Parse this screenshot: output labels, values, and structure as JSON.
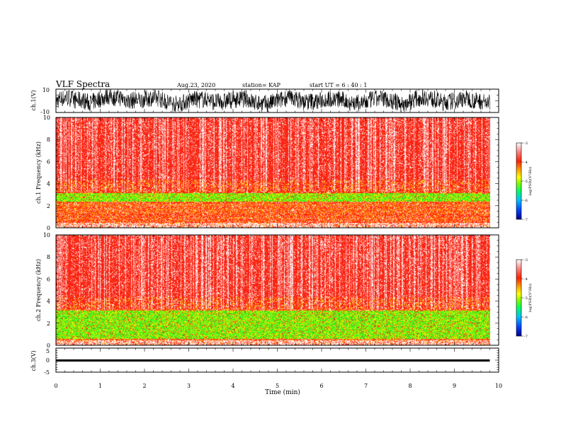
{
  "header": {
    "title": "VLF Spectra",
    "date": "Aug.23, 2020",
    "station": "station= KAP",
    "start_ut": "start  UT =   6  : 40 : 1"
  },
  "colorbar": {
    "label": "log(PSD)(V²/Hz)",
    "ticks": [
      "-3",
      "-4",
      "-5",
      "-6",
      "-7"
    ],
    "colors": [
      "#000090",
      "#0040ff",
      "#00c0ff",
      "#00ff60",
      "#80ff00",
      "#ffff00",
      "#ffa000",
      "#ff2000",
      "#ff8080",
      "#ffffff"
    ]
  },
  "chart_data": [
    {
      "type": "line",
      "id": "ch1_waveform",
      "ylabel": "ch.1(V)",
      "ylim": [
        -10,
        10
      ],
      "yticks": [
        "10",
        "-10"
      ],
      "xlim": [
        0,
        10
      ],
      "note_color": "#000000"
    },
    {
      "type": "heatmap",
      "id": "ch1_spectrogram",
      "ylabel": "ch.1  Frequency (kHz)",
      "ylim": [
        0,
        10
      ],
      "yticks": [
        "0",
        "2",
        "4",
        "6",
        "8",
        "10"
      ],
      "xlim": [
        0,
        9.8
      ],
      "green_band_khz": [
        2.4,
        3.2
      ],
      "quiet_line_khz": [
        0.6,
        1.6
      ]
    },
    {
      "type": "heatmap",
      "id": "ch2_spectrogram",
      "ylabel": "ch.2  Frequency (kHz)",
      "ylim": [
        0,
        10
      ],
      "yticks": [
        "0",
        "2",
        "4",
        "6",
        "8",
        "10"
      ],
      "xlim": [
        0,
        9.8
      ],
      "green_band_khz": [
        0.6,
        3.2
      ]
    },
    {
      "type": "line",
      "id": "ch3_waveform",
      "ylabel": "ch.3(V)",
      "ylim": [
        -5,
        5
      ],
      "yticks": [
        "5",
        "0",
        "-5"
      ],
      "xlim": [
        0,
        10
      ],
      "level_v": [
        -0.6,
        0.3
      ]
    }
  ],
  "xaxis": {
    "label": "Time  (min)",
    "ticks": [
      "0",
      "1",
      "2",
      "3",
      "4",
      "5",
      "6",
      "7",
      "8",
      "9",
      "10"
    ]
  }
}
